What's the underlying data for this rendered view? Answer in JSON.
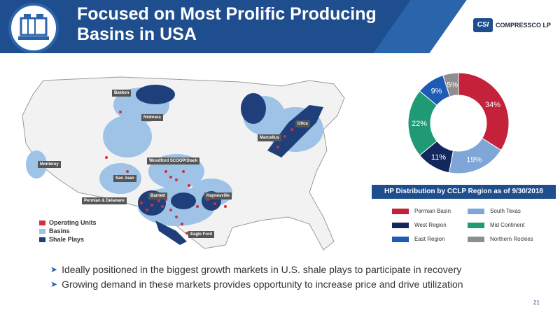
{
  "header": {
    "title_line1": "Focused on Most Prolific Producing",
    "title_line2": "Basins in USA",
    "logo_mark": "CSI",
    "logo_text": "COMPRESSCO LP"
  },
  "map": {
    "labels": [
      "Bakken",
      "Niobrara",
      "Utica",
      "Marcellus",
      "Monterey",
      "Woodford SCOOP/Stack",
      "San Juan",
      "Permian & Delaware",
      "Barnett",
      "Haynesville",
      "Eagle Ford"
    ],
    "legend": [
      {
        "label": "Operating Units",
        "color": "#d62e3b"
      },
      {
        "label": "Basins",
        "color": "#9ec3e6"
      },
      {
        "label": "Shale Plays",
        "color": "#1f3f7a"
      }
    ]
  },
  "chart_data": {
    "type": "pie",
    "title": "HP Distribution by CCLP Region as of 9/30/2018",
    "slices": [
      {
        "name": "Permian Basin",
        "value": 34,
        "label": "34%",
        "color": "#c4213a"
      },
      {
        "name": "South Texas",
        "value": 19,
        "label": "19%",
        "color": "#7ea7d8"
      },
      {
        "name": "West Region",
        "value": 11,
        "label": "11%",
        "color": "#14265e"
      },
      {
        "name": "Mid Continent",
        "value": 22,
        "label": "22%",
        "color": "#1f9a74"
      },
      {
        "name": "East Region",
        "value": 9,
        "label": "9%",
        "color": "#1d5bb5"
      },
      {
        "name": "Northern Rockies",
        "value": 5,
        "label": "5%",
        "color": "#8e8e8e"
      }
    ],
    "legend_position": "bottom"
  },
  "bullets": [
    "Ideally positioned in the biggest growth markets in U.S. shale plays to participate in recovery",
    "Growing demand in these markets provides opportunity to increase price and drive utilization"
  ],
  "page_number": "21"
}
